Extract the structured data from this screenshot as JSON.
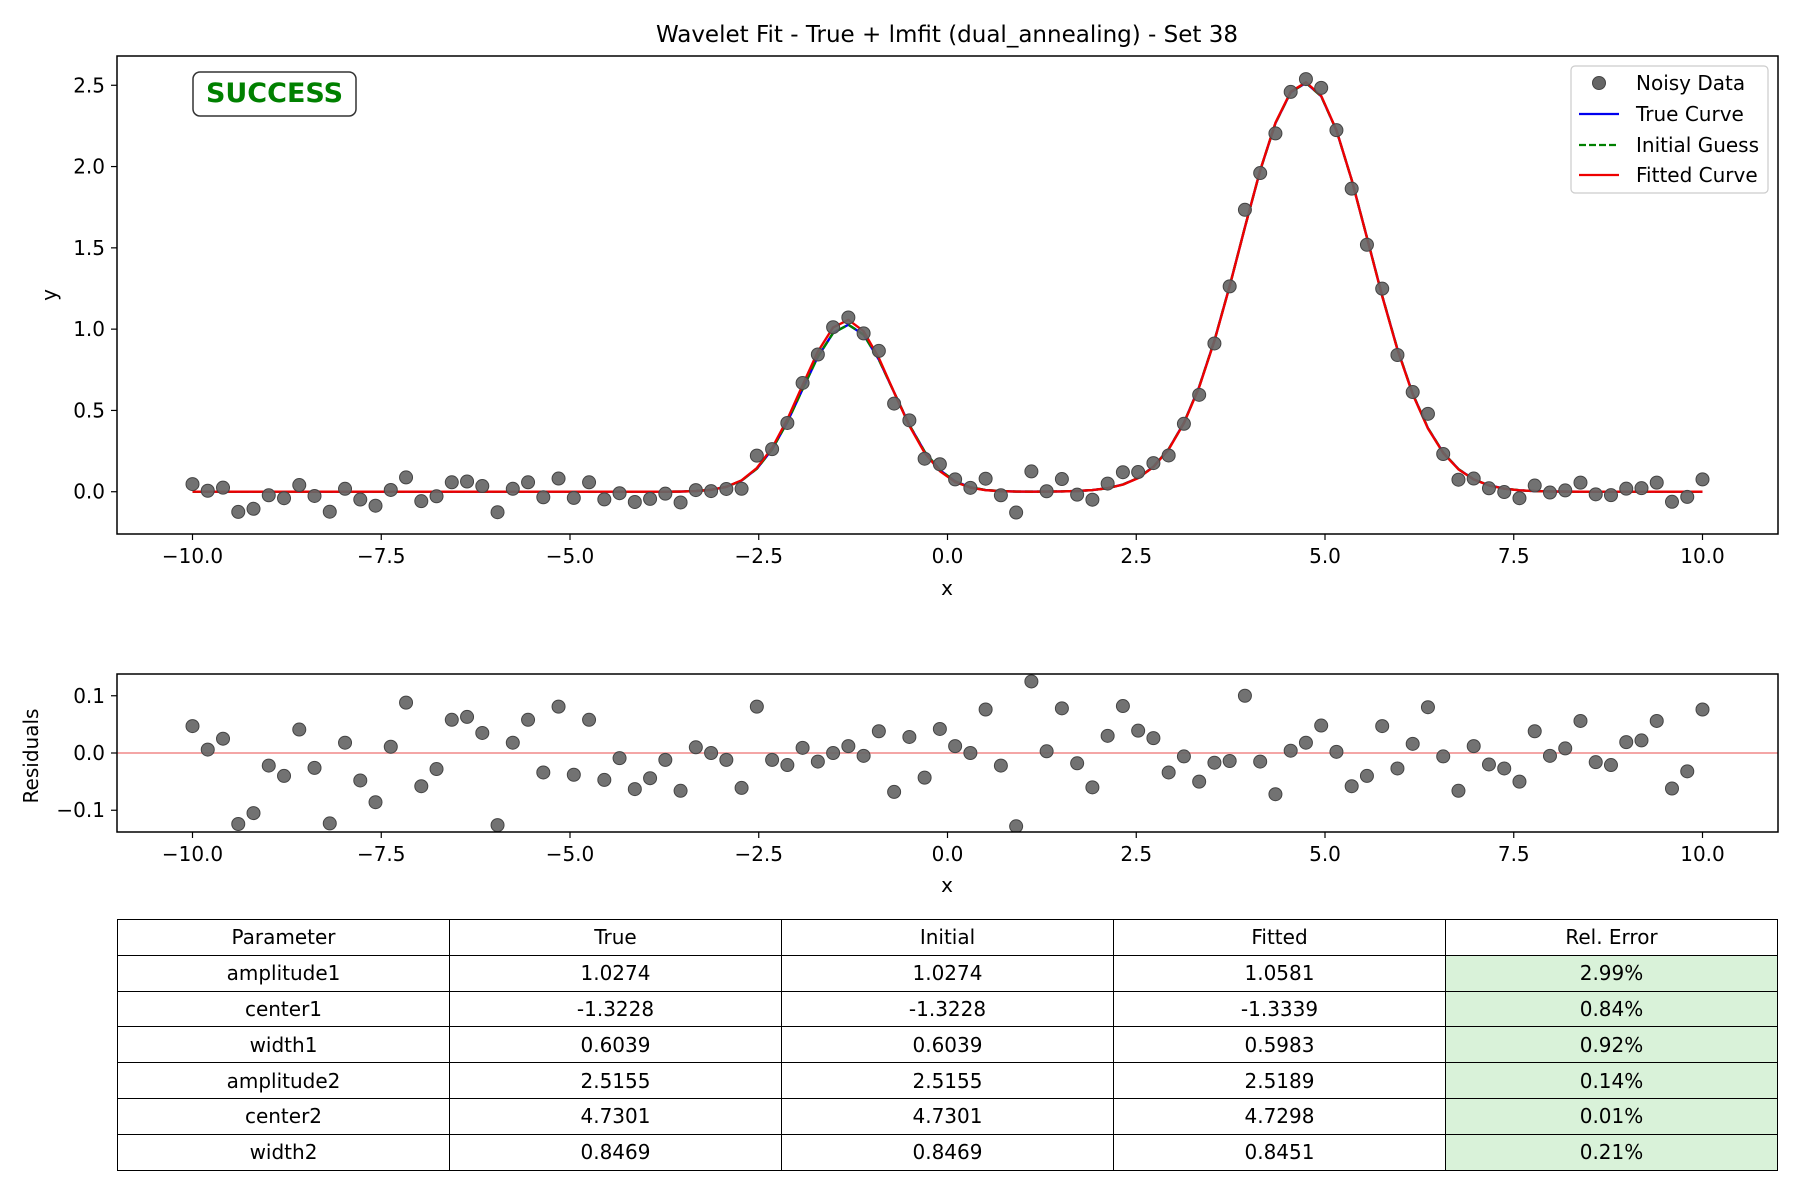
{
  "charts": [
    {
      "title": "Wavelet Fit - True + lmfit (dual_annealing) - Set 38",
      "status_badge": "SUCCESS",
      "xlabel": "x",
      "ylabel": "y",
      "xlim": [
        -11.0,
        11.0
      ],
      "ylim": [
        -0.26,
        2.68
      ],
      "xticks": [
        "−10.0",
        "−7.5",
        "−5.0",
        "−2.5",
        "0.0",
        "2.5",
        "5.0",
        "7.5",
        "10.0"
      ],
      "yticks": [
        "0.0",
        "0.5",
        "1.0",
        "1.5",
        "2.0",
        "2.5"
      ],
      "legend_position": "top-right",
      "legend": [
        "Noisy Data",
        "True Curve",
        "Initial Guess",
        "Fitted Curve"
      ]
    },
    {
      "xlabel": "x",
      "ylabel": "Residuals",
      "xlim": [
        -11.0,
        11.0
      ],
      "ylim": [
        -0.138,
        0.138
      ],
      "xticks": [
        "−10.0",
        "−7.5",
        "−5.0",
        "−2.5",
        "0.0",
        "2.5",
        "5.0",
        "7.5",
        "10.0"
      ],
      "yticks": [
        "−0.1",
        "0.0",
        "0.1"
      ]
    }
  ],
  "chart_data": [
    {
      "type": "scatter",
      "title": "Wavelet Fit - True + lmfit (dual_annealing) - Set 38",
      "xlabel": "x",
      "ylabel": "y",
      "xlim": [
        -11.0,
        11.0
      ],
      "ylim": [
        -0.26,
        2.68
      ],
      "grid": false,
      "legend_position": "top-right",
      "model": "sum of two gaussians",
      "x_range": [
        -10.0,
        10.0
      ],
      "n_points": 100,
      "series": [
        {
          "name": "Noisy Data",
          "kind": "scatter",
          "color": "#666666",
          "y": [
            0.047,
            0.006,
            0.025,
            -0.124,
            -0.105,
            -0.022,
            -0.04,
            0.041,
            -0.026,
            -0.123,
            0.018,
            -0.048,
            -0.086,
            0.011,
            0.088,
            -0.058,
            -0.028,
            0.058,
            0.063,
            0.035,
            -0.126,
            0.018,
            0.058,
            -0.034,
            0.081,
            -0.038,
            0.058,
            -0.047,
            -0.009,
            -0.063,
            -0.044,
            -0.012,
            -0.066,
            0.01,
            0.004,
            0.017,
            0.018,
            0.222,
            0.262,
            0.423,
            0.669,
            0.844,
            1.012,
            1.072,
            0.974,
            0.866,
            0.542,
            0.439,
            0.203,
            0.169,
            0.076,
            0.024,
            0.08,
            -0.022,
            -0.128,
            0.125,
            0.003,
            0.078,
            -0.018,
            -0.049,
            0.05,
            0.12,
            0.121,
            0.176,
            0.223,
            0.418,
            0.596,
            0.912,
            1.263,
            1.734,
            1.96,
            2.204,
            2.459,
            2.538,
            2.484,
            2.224,
            1.864,
            1.519,
            1.249,
            0.841,
            0.613,
            0.479,
            0.232,
            0.074,
            0.081,
            0.021,
            -0.002,
            -0.04,
            0.038,
            -0.005,
            0.008,
            0.056,
            -0.016,
            -0.021,
            0.019,
            0.022,
            0.056,
            -0.062,
            -0.032,
            0.076
          ]
        },
        {
          "name": "True Curve",
          "kind": "line",
          "color": "#0000ee",
          "params": {
            "amplitude1": 1.0274,
            "center1": -1.3228,
            "width1": 0.6039,
            "amplitude2": 2.5155,
            "center2": 4.7301,
            "width2": 0.8469
          }
        },
        {
          "name": "Initial Guess",
          "kind": "line",
          "style": "dashed",
          "color": "#008000",
          "params": {
            "amplitude1": 1.0274,
            "center1": -1.3228,
            "width1": 0.6039,
            "amplitude2": 2.5155,
            "center2": 4.7301,
            "width2": 0.8469
          }
        },
        {
          "name": "Fitted Curve",
          "kind": "line",
          "color": "#ee0000",
          "params": {
            "amplitude1": 1.0581,
            "center1": -1.3339,
            "width1": 0.5983,
            "amplitude2": 2.5189,
            "center2": 4.7298,
            "width2": 0.8451
          }
        }
      ]
    },
    {
      "type": "scatter",
      "xlabel": "x",
      "ylabel": "Residuals",
      "xlim": [
        -11.0,
        11.0
      ],
      "ylim": [
        -0.138,
        0.138
      ],
      "grid": false,
      "reference_line": {
        "y": 0,
        "color": "#f4a6a6"
      },
      "x_range": [
        -10.0,
        10.0
      ],
      "n_points": 100,
      "series": [
        {
          "kind": "scatter",
          "color": "#666666",
          "y": [
            0.047,
            0.006,
            0.025,
            -0.124,
            -0.105,
            -0.022,
            -0.04,
            0.041,
            -0.026,
            -0.123,
            0.018,
            -0.048,
            -0.086,
            0.011,
            0.088,
            -0.058,
            -0.028,
            0.058,
            0.063,
            0.035,
            -0.126,
            0.018,
            0.058,
            -0.034,
            0.081,
            -0.038,
            0.058,
            -0.047,
            -0.009,
            -0.063,
            -0.044,
            -0.012,
            -0.066,
            0.01,
            0.0,
            -0.012,
            -0.061,
            0.081,
            -0.012,
            -0.021,
            0.009,
            -0.015,
            0.0,
            0.012,
            -0.005,
            0.038,
            -0.068,
            0.028,
            -0.043,
            0.042,
            0.012,
            0.0,
            0.076,
            -0.022,
            -0.128,
            0.125,
            0.003,
            0.078,
            -0.018,
            -0.06,
            0.03,
            0.082,
            0.039,
            0.026,
            -0.034,
            -0.006,
            -0.05,
            -0.017,
            -0.014,
            0.1,
            -0.015,
            -0.072,
            0.004,
            0.018,
            0.048,
            0.002,
            -0.058,
            -0.04,
            0.047,
            -0.027,
            0.016,
            0.08,
            -0.006,
            -0.066,
            0.012,
            -0.02,
            -0.027,
            -0.05,
            0.038,
            -0.005,
            0.008,
            0.056,
            -0.016,
            -0.021,
            0.019,
            0.022,
            0.056,
            -0.062,
            -0.032,
            0.076
          ]
        }
      ]
    },
    {
      "type": "table",
      "columns": [
        "Parameter",
        "True",
        "Initial",
        "Fitted",
        "Rel. Error"
      ],
      "rows": [
        [
          "amplitude1",
          "1.0274",
          "1.0274",
          "1.0581",
          "2.99%"
        ],
        [
          "center1",
          "-1.3228",
          "-1.3228",
          "-1.3339",
          "0.84%"
        ],
        [
          "width1",
          "0.6039",
          "0.6039",
          "0.5983",
          "0.92%"
        ],
        [
          "amplitude2",
          "2.5155",
          "2.5155",
          "2.5189",
          "0.14%"
        ],
        [
          "center2",
          "4.7301",
          "4.7301",
          "4.7298",
          "0.01%"
        ],
        [
          "width2",
          "0.8469",
          "0.8469",
          "0.8451",
          "0.21%"
        ]
      ]
    }
  ]
}
